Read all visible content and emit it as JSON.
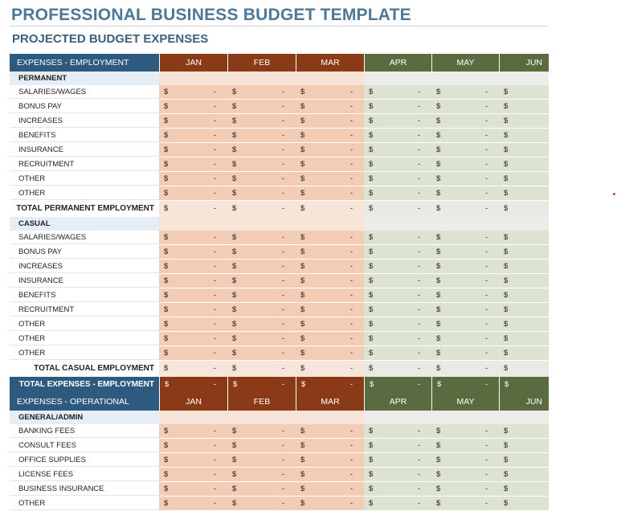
{
  "title": "PROFESSIONAL BUSINESS BUDGET TEMPLATE",
  "subtitle": "PROJECTED BUDGET EXPENSES",
  "currency": "$",
  "empty_value": "-",
  "months": [
    "JAN",
    "FEB",
    "MAR",
    "APR",
    "MAY",
    "JUN"
  ],
  "colors": {
    "title": "#4e7898",
    "header_blue": "#2e5a80",
    "header_rust": "#8a3a17",
    "header_olive": "#5b6b40",
    "cell_warm": "#f3ccb5",
    "cell_cool": "#dde3d1"
  },
  "employment": {
    "header": "EXPENSES - EMPLOYMENT",
    "permanent": {
      "label": "PERMANENT",
      "items": [
        "SALARIES/WAGES",
        "BONUS PAY",
        "INCREASES",
        "BENEFITS",
        "INSURANCE",
        "RECRUITMENT",
        "OTHER",
        "OTHER"
      ],
      "total_label": "TOTAL PERMANENT EMPLOYMENT"
    },
    "casual": {
      "label": "CASUAL",
      "items": [
        "SALARIES/WAGES",
        "BONUS PAY",
        "INCREASES",
        "INSURANCE",
        "BENEFITS",
        "RECRUITMENT",
        "OTHER",
        "OTHER",
        "OTHER"
      ],
      "total_label": "TOTAL CASUAL EMPLOYMENT"
    },
    "grand_total_label": "TOTAL EXPENSES - EMPLOYMENT"
  },
  "operational": {
    "header": "EXPENSES - OPERATIONAL",
    "general": {
      "label": "GENERAL/ADMIN",
      "items": [
        "BANKING FEES",
        "CONSULT FEES",
        "OFFICE SUPPLIES",
        "LICENSE FEES",
        "BUSINESS INSURANCE",
        "OTHER"
      ]
    }
  }
}
